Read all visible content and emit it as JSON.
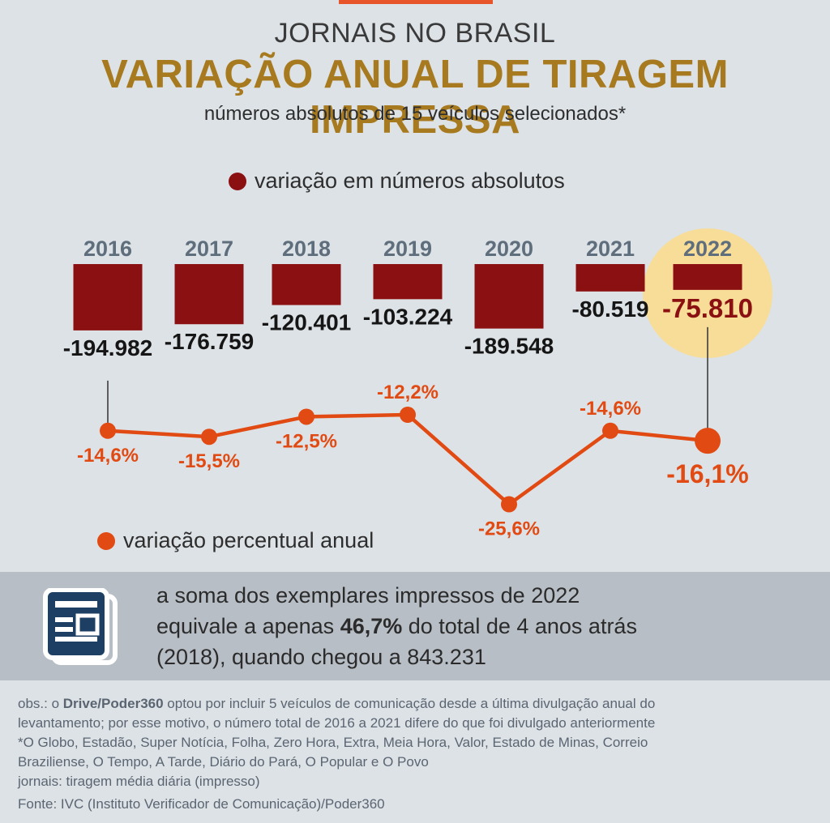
{
  "header": {
    "kicker": "JORNAIS NO BRASIL",
    "title": "VARIAÇÃO ANUAL DE TIRAGEM IMPRESSA",
    "subtitle": "números absolutos de 15 veículos selecionados*"
  },
  "legend": {
    "absolute_label": "variação em números absolutos",
    "percent_label": "variação percentual anual"
  },
  "colors": {
    "bar": "#8b1012",
    "line": "#e14a12",
    "year": "#5f6e7c",
    "highlight": "#f7dd97",
    "title": "#a77a1f"
  },
  "chart_data": {
    "type": "bar",
    "categories": [
      "2016",
      "2017",
      "2018",
      "2019",
      "2020",
      "2021",
      "2022"
    ],
    "series": [
      {
        "name": "variação em números absolutos",
        "values": [
          -194982,
          -176759,
          -120401,
          -103224,
          -189548,
          -80519,
          -75810
        ]
      },
      {
        "name": "variação percentual anual",
        "values": [
          -14.6,
          -15.5,
          -12.5,
          -12.2,
          -25.6,
          -14.6,
          -16.1
        ]
      }
    ],
    "bar_labels": [
      "-194.982",
      "-176.759",
      "-120.401",
      "-103.224",
      "-189.548",
      "-80.519",
      "-75.810"
    ],
    "pct_labels": [
      "-14,6%",
      "-15,5%",
      "-12,5%",
      "-12,2%",
      "-25,6%",
      "-14,6%",
      "-16,1%"
    ],
    "highlight": "2022"
  },
  "info": {
    "line1": "a soma dos exemplares impressos de 2022",
    "line2_pre": "equivale a apenas ",
    "line2_bold": "46,7%",
    "line2_post": " do total de 4 anos atrás",
    "line3": "(2018), quando chegou a 843.231",
    "icon": "newspaper-icon"
  },
  "notes": {
    "line1_pre": "obs.: o ",
    "line1_bold": "Drive/Poder360",
    "line1_post": " optou por incluir 5 veículos de comunicação desde a última divulgação anual do",
    "line2": "levantamento; por esse motivo, o número total de 2016 a 2021 difere do que foi divulgado anteriormente",
    "line3": "*O Globo, Estadão, Super Notícia, Folha, Zero Hora, Extra, Meia Hora, Valor, Estado de Minas, Correio",
    "line4": "Braziliense, O Tempo, A Tarde, Diário do Pará, O Popular e O Povo",
    "line5": "jornais: tiragem média diária (impresso)"
  },
  "source": "Fonte: IVC (Instituto Verificador de Comunicação)/Poder360"
}
